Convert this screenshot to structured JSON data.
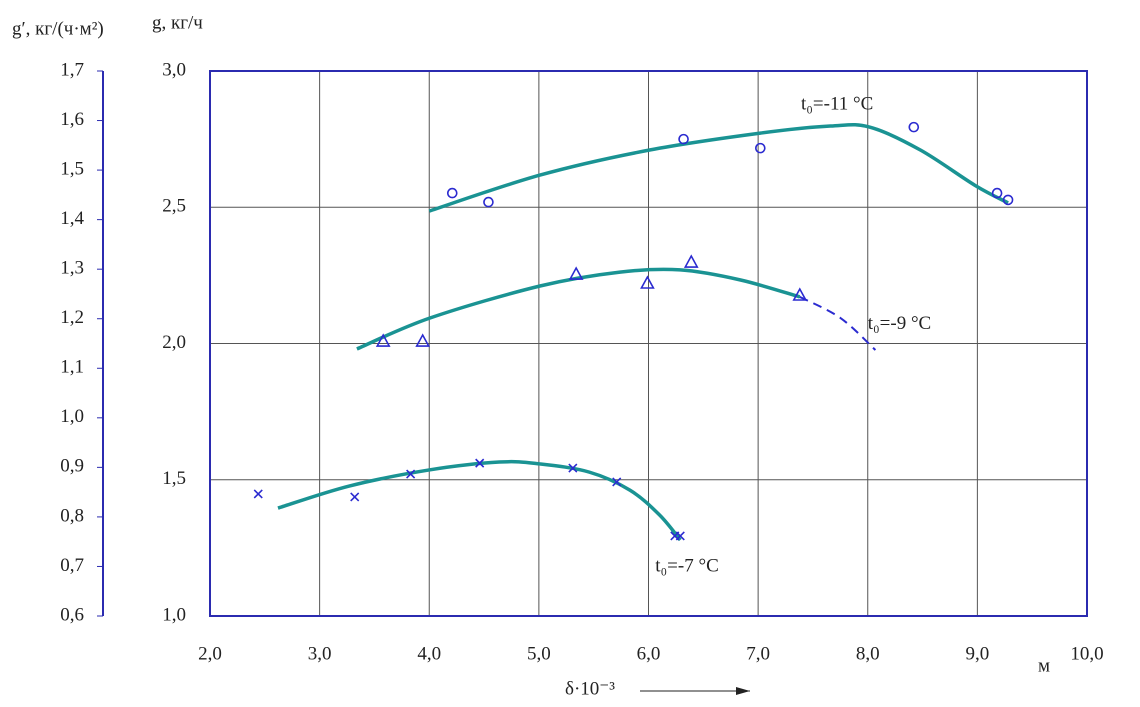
{
  "chart_data": {
    "type": "scatter",
    "y_axis_label": "g, кг/ч",
    "y2_axis_label": "g′, кг/(ч·м²)",
    "x_axis_label": "δ·10⁻³",
    "x_unit": "м",
    "xlim": [
      2,
      10
    ],
    "xticks": [
      {
        "value": 2,
        "label": "2,0"
      },
      {
        "value": 3,
        "label": "3,0"
      },
      {
        "value": 4,
        "label": "4,0"
      },
      {
        "value": 5,
        "label": "5,0"
      },
      {
        "value": 6,
        "label": "6,0"
      },
      {
        "value": 7,
        "label": "7,0"
      },
      {
        "value": 8,
        "label": "8,0"
      },
      {
        "value": 9,
        "label": "9,0"
      },
      {
        "value": 10,
        "label": "10,0"
      }
    ],
    "ylim": [
      1,
      3
    ],
    "yticks": [
      {
        "value": 1,
        "label": "1,0"
      },
      {
        "value": 1.5,
        "label": "1,5"
      },
      {
        "value": 2,
        "label": "2,0"
      },
      {
        "value": 2.5,
        "label": "2,5"
      },
      {
        "value": 3,
        "label": "3,0"
      }
    ],
    "y2lim": [
      0.6,
      1.7
    ],
    "y2ticks": [
      {
        "value": 0.6,
        "label": "0,6"
      },
      {
        "value": 0.7,
        "label": "0,7"
      },
      {
        "value": 0.8,
        "label": "0,8"
      },
      {
        "value": 0.9,
        "label": "0,9"
      },
      {
        "value": 1.0,
        "label": "1,0"
      },
      {
        "value": 1.1,
        "label": "1,1"
      },
      {
        "value": 1.2,
        "label": "1,2"
      },
      {
        "value": 1.3,
        "label": "1,3"
      },
      {
        "value": 1.4,
        "label": "1,4"
      },
      {
        "value": 1.5,
        "label": "1,5"
      },
      {
        "value": 1.6,
        "label": "1,6"
      },
      {
        "value": 1.7,
        "label": "1,7"
      }
    ],
    "grid": true,
    "axis_color": "#2b2bb0",
    "series": [
      {
        "marker": "circle",
        "color": "#2b2bd0",
        "x": [
          4.21,
          4.54,
          6.32,
          7.02,
          8.42,
          9.18,
          9.28
        ],
        "values": [
          2.552,
          2.519,
          2.75,
          2.717,
          2.794,
          2.552,
          2.527
        ]
      },
      {
        "marker": "triangle",
        "color": "#2b2bd0",
        "x": [
          3.58,
          3.94,
          5.34,
          5.99,
          6.39,
          7.38
        ],
        "values": [
          2.009,
          2.009,
          2.255,
          2.222,
          2.299,
          2.178
        ]
      },
      {
        "marker": "cross",
        "color": "#2b2bd0",
        "x": [
          2.44,
          3.32,
          3.83,
          4.46,
          5.31,
          5.71,
          6.24,
          6.29
        ],
        "values": [
          1.448,
          1.437,
          1.521,
          1.561,
          1.543,
          1.492,
          1.294,
          1.294
        ]
      }
    ],
    "curves": [
      {
        "label": "t₀=-11 °C",
        "color": "#1a9393",
        "dashed": false,
        "x": [
          4.0,
          5.01,
          6.01,
          7.02,
          7.66,
          8.02,
          8.48,
          8.98,
          9.28
        ],
        "values": [
          2.486,
          2.618,
          2.71,
          2.772,
          2.798,
          2.794,
          2.71,
          2.58,
          2.516
        ]
      },
      {
        "label": "t₀=-9 °C",
        "color": "#1a9393",
        "dashed": false,
        "x": [
          3.34,
          4.01,
          5.01,
          5.74,
          6.29,
          6.84,
          7.38
        ],
        "values": [
          1.98,
          2.094,
          2.211,
          2.262,
          2.27,
          2.233,
          2.171
        ]
      },
      {
        "label": "t₀=-7 °C",
        "color": "#1a9393",
        "dashed": false,
        "x": [
          2.62,
          3.27,
          4.0,
          4.64,
          5.01,
          5.46,
          5.83,
          6.1,
          6.29
        ],
        "values": [
          1.396,
          1.477,
          1.536,
          1.565,
          1.558,
          1.528,
          1.462,
          1.371,
          1.279
        ]
      },
      {
        "color": "#2b2bd0",
        "dashed": true,
        "x": [
          7.38,
          7.75,
          8.07
        ],
        "values": [
          2.171,
          2.094,
          1.976
        ]
      }
    ]
  }
}
